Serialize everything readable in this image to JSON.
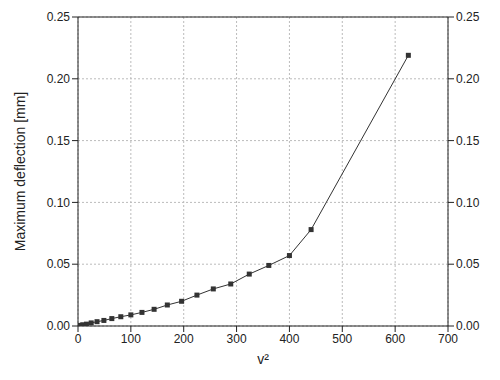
{
  "chart_data": {
    "type": "line",
    "x_label": "v²",
    "y_label": "Maximum deflection [mm]",
    "x": [
      0,
      1,
      4,
      9,
      16,
      25,
      36,
      49,
      64,
      81,
      100,
      121,
      144,
      169,
      196,
      225,
      256,
      289,
      324,
      361,
      400,
      441,
      625
    ],
    "values": [
      0,
      0.0002,
      0.0005,
      0.001,
      0.0015,
      0.0025,
      0.0035,
      0.0045,
      0.006,
      0.0075,
      0.009,
      0.011,
      0.0135,
      0.017,
      0.02,
      0.025,
      0.03,
      0.034,
      0.042,
      0.049,
      0.057,
      0.078,
      0.219
    ],
    "color": "#333333",
    "marker": "square",
    "xlim": [
      0,
      700
    ],
    "xticks": [
      0,
      100,
      200,
      300,
      400,
      500,
      600,
      700
    ],
    "ylim": [
      0,
      0.25
    ],
    "yticks": [
      {
        "value": 0,
        "label": "0.00"
      },
      {
        "value": 0.05,
        "label": "0.05"
      },
      {
        "value": 0.1,
        "label": "0.10"
      },
      {
        "value": 0.15,
        "label": "0.15"
      },
      {
        "value": 0.2,
        "label": "0.20"
      },
      {
        "value": 0.25,
        "label": "0.25"
      }
    ],
    "grid": true
  }
}
